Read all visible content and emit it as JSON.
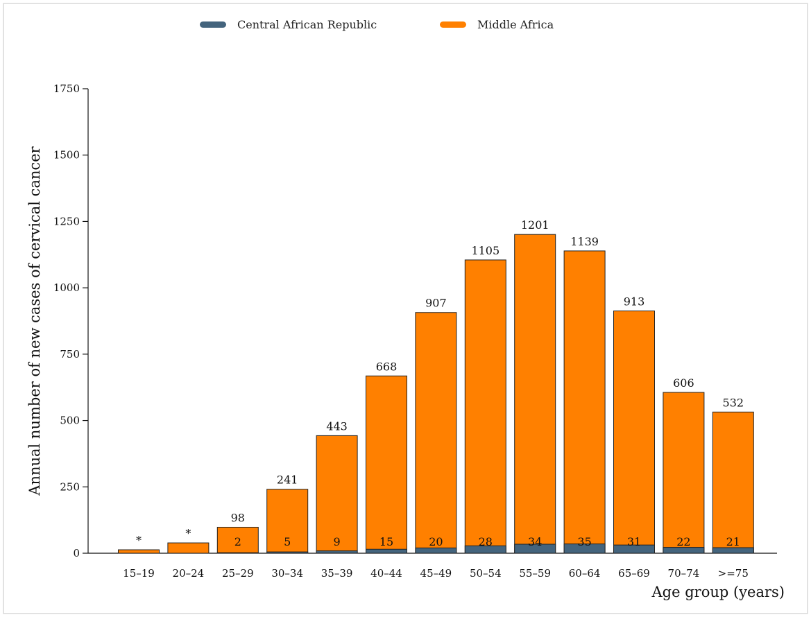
{
  "legend": [
    {
      "name": "Central African Republic",
      "color": "#44647d"
    },
    {
      "name": "Middle Africa",
      "color": "#ff8000"
    }
  ],
  "chart_data": {
    "type": "bar",
    "stacked": "overlapping",
    "xlabel": "Age group (years)",
    "ylabel": "Annual number of new cases of cervical cancer",
    "ylim": [
      0,
      1750
    ],
    "yticks": [
      0,
      250,
      500,
      750,
      1000,
      1250,
      1500,
      1750
    ],
    "categories": [
      "15–19",
      "20–24",
      "25–29",
      "30–34",
      "35–39",
      "40–44",
      "45–49",
      "50–54",
      "55–59",
      "60–64",
      "65–69",
      "70–74",
      ">=75"
    ],
    "series": [
      {
        "name": "Middle Africa",
        "color": "#ff8000",
        "values": [
          13,
          39,
          98,
          241,
          443,
          668,
          907,
          1105,
          1201,
          1139,
          913,
          606,
          532
        ],
        "labels": [
          "*",
          "*",
          "98",
          "241",
          "443",
          "668",
          "907",
          "1105",
          "1201",
          "1139",
          "913",
          "606",
          "532"
        ]
      },
      {
        "name": "Central African Republic",
        "color": "#44647d",
        "values": [
          0,
          0,
          2,
          5,
          9,
          15,
          20,
          28,
          34,
          35,
          31,
          22,
          21
        ],
        "labels": [
          "",
          "",
          "2",
          "5",
          "9",
          "15",
          "20",
          "28",
          "34",
          "35",
          "31",
          "22",
          "21"
        ]
      }
    ],
    "grid": false,
    "legend_position": "top"
  }
}
